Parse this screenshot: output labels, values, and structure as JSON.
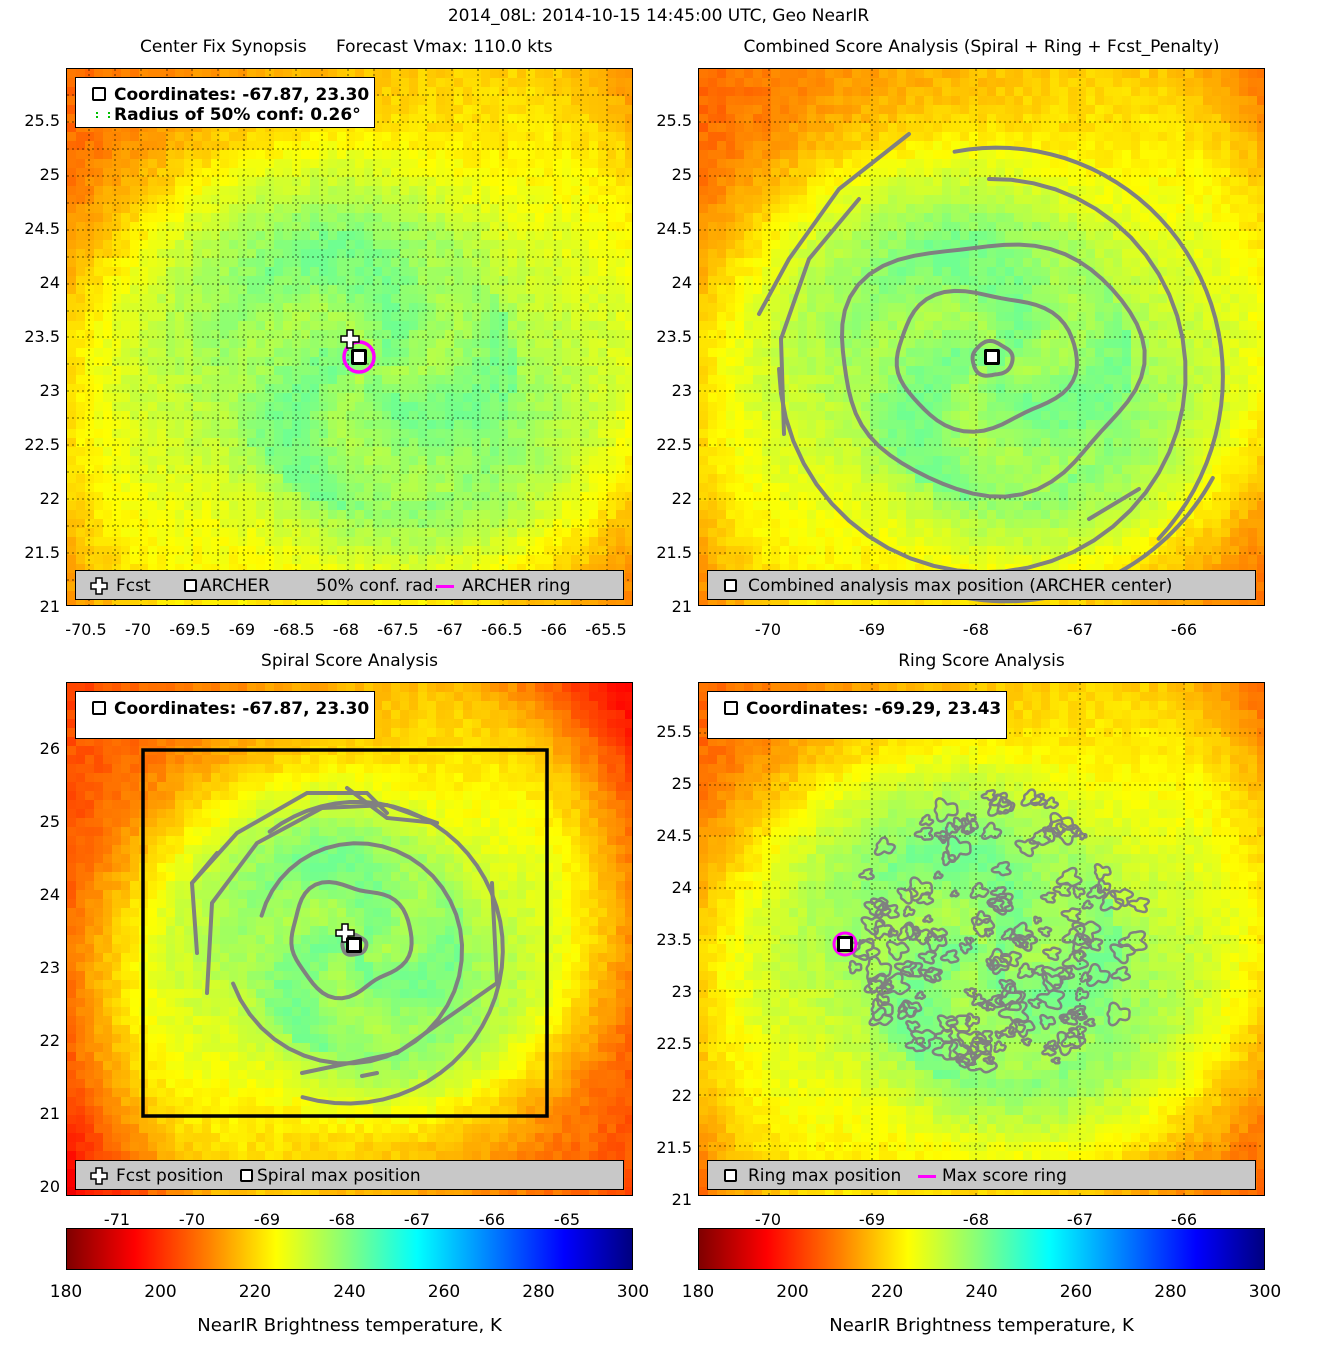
{
  "suptitle": "2014_08L: 2014-10-15 14:45:00 UTC, Geo NearIR",
  "colormap": {
    "name": "jet",
    "min": 180,
    "max": 300
  },
  "panels": {
    "tl": {
      "title_left": "Center Fix Synopsis",
      "title_right": "Forecast Vmax: 110.0 kts",
      "legend_top": {
        "line1": "Coordinates: -67.87, 23.30",
        "line2": "Radius of 50% conf: 0.26°"
      },
      "legend_bottom": {
        "fcst": "Fcst",
        "archer": "ARCHER",
        "conf": "50% conf. rad.",
        "ring": "ARCHER ring"
      },
      "yticks": [
        "25.5",
        "25",
        "24.5",
        "24",
        "23.5",
        "23",
        "22.5",
        "22",
        "21.5",
        "21"
      ],
      "xticks": [
        "-70.5",
        "-70",
        "-69.5",
        "-69",
        "-68.5",
        "-68",
        "-67.5",
        "-67",
        "-66.5",
        "-66",
        "-65.5"
      ]
    },
    "tr": {
      "title": "Combined Score Analysis (Spiral + Ring + Fcst_Penalty)",
      "legend_bottom": "Combined analysis max position (ARCHER center)",
      "yticks": [
        "25.5",
        "25",
        "24.5",
        "24",
        "23.5",
        "23",
        "22.5",
        "22",
        "21.5",
        "21"
      ],
      "xticks": [
        "-70",
        "-69",
        "-68",
        "-67",
        "-66"
      ]
    },
    "bl": {
      "title": "Spiral Score Analysis",
      "legend_top": "Coordinates: -67.87, 23.30",
      "legend_bottom": {
        "fcst": "Fcst position",
        "spiral": "Spiral max position"
      },
      "yticks": [
        "26",
        "25",
        "24",
        "23",
        "22",
        "21",
        "20"
      ],
      "xticks": [
        "-71",
        "-70",
        "-69",
        "-68",
        "-67",
        "-66",
        "-65"
      ]
    },
    "br": {
      "title": "Ring Score Analysis",
      "legend_top": "Coordinates: -69.29, 23.43",
      "legend_bottom": {
        "ring": "Ring max position",
        "score": "Max score ring"
      },
      "yticks": [
        "25.5",
        "25",
        "24.5",
        "24",
        "23.5",
        "23",
        "22.5",
        "22",
        "21.5",
        "21"
      ],
      "xticks": [
        "-70",
        "-69",
        "-68",
        "-67",
        "-66"
      ]
    }
  },
  "colorbar": {
    "ticks": [
      "180",
      "200",
      "220",
      "240",
      "260",
      "280",
      "300"
    ],
    "label": "NearIR Brightness temperature, K"
  },
  "chart_data": [
    {
      "type": "heatmap",
      "title": "Center Fix Synopsis",
      "subtitle": "Forecast Vmax: 110.0 kts",
      "xlim": [
        -70.7,
        -65.3
      ],
      "ylim": [
        21,
        26
      ],
      "grid": true,
      "archer_center": {
        "lon": -67.87,
        "lat": 23.3
      },
      "forecast": {
        "lon": -67.95,
        "lat": 23.48
      },
      "confidence_radius_deg": 0.26
    },
    {
      "type": "heatmap",
      "title": "Combined Score Analysis (Spiral + Ring + Fcst_Penalty)",
      "xlim": [
        -70.7,
        -65.3
      ],
      "ylim": [
        21,
        26
      ],
      "grid": true,
      "max_position": {
        "lon": -67.87,
        "lat": 23.3
      }
    },
    {
      "type": "heatmap",
      "title": "Spiral Score Analysis",
      "xlim": [
        -71.7,
        -64.1
      ],
      "ylim": [
        20,
        26.9
      ],
      "max_position": {
        "lon": -67.87,
        "lat": 23.3
      },
      "forecast": {
        "lon": -67.95,
        "lat": 23.48
      },
      "search_box": {
        "lon": [
          -70.7,
          -65.3
        ],
        "lat": [
          21,
          26
        ]
      }
    },
    {
      "type": "heatmap",
      "title": "Ring Score Analysis",
      "xlim": [
        -70.7,
        -65.3
      ],
      "ylim": [
        21,
        26
      ],
      "grid": true,
      "max_position": {
        "lon": -69.29,
        "lat": 23.43
      }
    }
  ]
}
